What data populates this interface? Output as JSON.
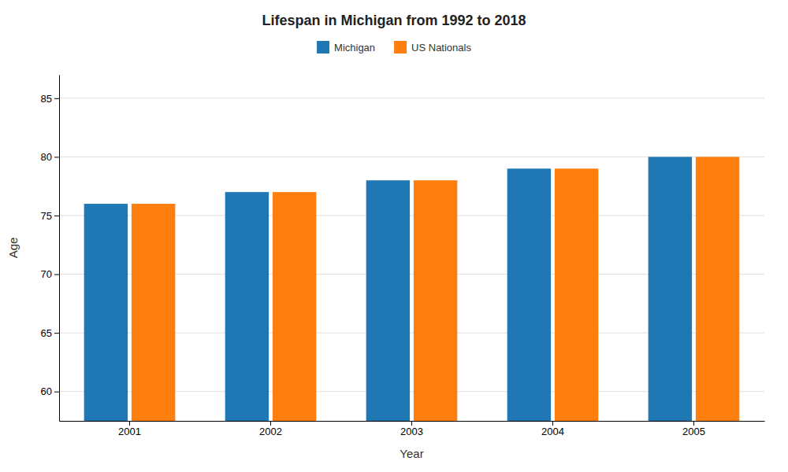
{
  "chart_data": {
    "type": "bar",
    "title": "Lifespan in Michigan from 1992 to 2018",
    "xlabel": "Year",
    "ylabel": "Age",
    "categories": [
      "2001",
      "2002",
      "2003",
      "2004",
      "2005"
    ],
    "series": [
      {
        "name": "Michigan",
        "values": [
          76,
          77,
          78,
          79,
          80
        ]
      },
      {
        "name": "US Nationals",
        "values": [
          76,
          77,
          78,
          79,
          80
        ]
      }
    ],
    "ylim": [
      57.5,
      87
    ],
    "yticks": [
      60,
      65,
      70,
      75,
      80,
      85
    ],
    "grid": true,
    "legend": "top"
  }
}
